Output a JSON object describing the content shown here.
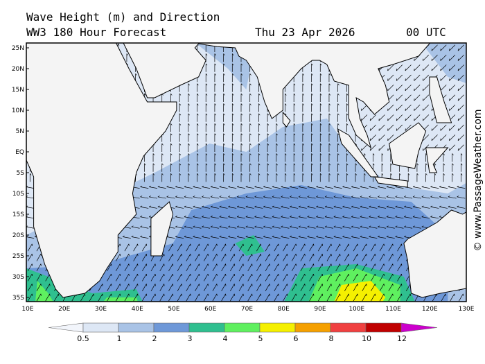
{
  "header": {
    "title": "Wave Height (m) and Direction",
    "model": "WW3 180 Hour Forecast",
    "date": "Thu 23 Apr 2026",
    "time": "00 UTC"
  },
  "map": {
    "lat_labels": [
      "25N",
      "20N",
      "15N",
      "10N",
      "5N",
      "EQ",
      "5S",
      "10S",
      "15S",
      "20S",
      "25S",
      "30S",
      "35S"
    ],
    "lon_labels": [
      "10E",
      "20E",
      "30E",
      "40E",
      "50E",
      "60E",
      "70E",
      "80E",
      "90E",
      "100E",
      "110E",
      "120E",
      "130E"
    ]
  },
  "legend": {
    "levels": [
      0.5,
      1,
      2,
      3,
      4,
      5,
      6,
      8,
      10,
      12
    ],
    "colors": [
      "#f2f5fb",
      "#dde7f5",
      "#a9c3e6",
      "#6e98d8",
      "#2fbf8f",
      "#5ff05f",
      "#f5f000",
      "#f5a000",
      "#f04040",
      "#c00000",
      "#cc00cc"
    ]
  },
  "credit": "© www.PassageWeather.com"
}
